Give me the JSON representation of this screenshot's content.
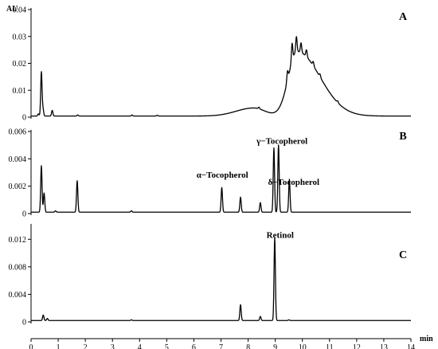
{
  "chart_data": {
    "type": "line",
    "layout": "three vertically stacked chromatograms sharing one x axis",
    "xlabel": "min",
    "x_range": [
      0,
      14
    ],
    "x_ticks": [
      "0",
      "1",
      "2",
      "3",
      "4",
      "5",
      "6",
      "7",
      "8",
      "9",
      "10",
      "11",
      "12",
      "13",
      "14"
    ],
    "panels": [
      {
        "id": "A",
        "label": "A",
        "ylabel": "AU",
        "y_range": [
          0,
          0.04
        ],
        "y_ticks": [
          "0.04",
          "0.03",
          "0.02",
          "0.01",
          "0"
        ],
        "annotations": [],
        "baseline": 0.0004,
        "broad_humps": [
          {
            "center": 9.8,
            "height": 0.024,
            "left_width": 0.45,
            "right_width": 1.2
          },
          {
            "center": 8.2,
            "height": 0.003,
            "left_width": 0.9,
            "right_width": 0.6
          }
        ],
        "peaks": [
          {
            "x": 0.27,
            "y": 0.0012
          },
          {
            "x": 0.38,
            "y": 0.0168
          },
          {
            "x": 0.44,
            "y": 0.003
          },
          {
            "x": 0.78,
            "y": 0.0025
          },
          {
            "x": 1.72,
            "y": 0.0008
          },
          {
            "x": 3.72,
            "y": 0.0008
          },
          {
            "x": 4.65,
            "y": 0.0007
          },
          {
            "x": 8.4,
            "y": 0.001
          },
          {
            "x": 9.45,
            "y": 0.004
          },
          {
            "x": 9.62,
            "y": 0.007
          },
          {
            "x": 9.78,
            "y": 0.006
          },
          {
            "x": 9.95,
            "y": 0.004
          },
          {
            "x": 10.15,
            "y": 0.003
          },
          {
            "x": 10.4,
            "y": 0.002
          },
          {
            "x": 10.65,
            "y": 0.0015
          },
          {
            "x": 11.3,
            "y": 0.001
          }
        ]
      },
      {
        "id": "B",
        "label": "B",
        "ylabel": "",
        "y_range": [
          0,
          0.006
        ],
        "y_ticks": [
          "0.006",
          "0.004",
          "0.002",
          "0"
        ],
        "annotations": [
          {
            "text": "α−Tocopherol",
            "x": 7.05,
            "y": 0.0022
          },
          {
            "text": "γ−Tocopherol",
            "x": 9.25,
            "y": 0.0047
          },
          {
            "text": "δ−Tocopherol",
            "x": 9.68,
            "y": 0.0017
          }
        ],
        "baseline": 0.0001,
        "broad_humps": [],
        "peaks": [
          {
            "x": 0.38,
            "y": 0.0035
          },
          {
            "x": 0.48,
            "y": 0.0015
          },
          {
            "x": 0.9,
            "y": 0.0002
          },
          {
            "x": 1.7,
            "y": 0.0024
          },
          {
            "x": 2.6,
            "y": 0.0001
          },
          {
            "x": 3.7,
            "y": 0.0002
          },
          {
            "x": 7.03,
            "y": 0.0019
          },
          {
            "x": 7.72,
            "y": 0.0012
          },
          {
            "x": 8.45,
            "y": 0.0008
          },
          {
            "x": 8.95,
            "y": 0.0048
          },
          {
            "x": 9.12,
            "y": 0.005
          },
          {
            "x": 9.52,
            "y": 0.0025
          }
        ]
      },
      {
        "id": "C",
        "label": "C",
        "ylabel": "",
        "y_range": [
          0,
          0.014
        ],
        "y_ticks": [
          "0.012",
          "0.008",
          "0.004",
          "0"
        ],
        "annotations": [
          {
            "text": "Retinol",
            "x": 9.18,
            "y": 0.0116
          }
        ],
        "baseline": 0.0002,
        "broad_humps": [],
        "peaks": [
          {
            "x": 0.45,
            "y": 0.001
          },
          {
            "x": 0.6,
            "y": 0.0005
          },
          {
            "x": 3.7,
            "y": 0.0003
          },
          {
            "x": 7.72,
            "y": 0.0025
          },
          {
            "x": 8.45,
            "y": 0.0008
          },
          {
            "x": 8.98,
            "y": 0.0122
          },
          {
            "x": 9.5,
            "y": 0.0003
          }
        ]
      }
    ]
  }
}
